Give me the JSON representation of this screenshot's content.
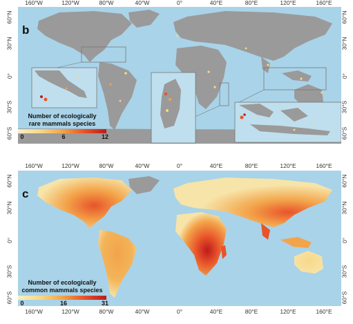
{
  "panels": {
    "b": {
      "letter": "b",
      "legend": {
        "line1": "Number of ecologically",
        "line2": "rare mammals species",
        "ticks": [
          "0",
          "6",
          "12"
        ],
        "colors": [
          "#f7f0c6",
          "#f7d889",
          "#f3a44a",
          "#e8532a",
          "#bd1a1d"
        ]
      }
    },
    "c": {
      "letter": "c",
      "legend": {
        "line1": "Number of ecologically",
        "line2": "common mammals species",
        "ticks": [
          "0",
          "16",
          "31"
        ],
        "colors": [
          "#f7f0c6",
          "#f7d889",
          "#f3a44a",
          "#e8532a",
          "#bd1a1d"
        ]
      }
    }
  },
  "axes": {
    "longitude": [
      "160°W",
      "120°W",
      "80°W",
      "40°W",
      "0°",
      "40°E",
      "80°E",
      "120°E",
      "160°E"
    ],
    "latitude": [
      "60°N",
      "30°N",
      "0°",
      "30°S",
      "60°S"
    ]
  },
  "colors": {
    "ocean": "#a9d3e8",
    "land_no_data": "#9a9a9a",
    "inset_frame": "#777777"
  }
}
